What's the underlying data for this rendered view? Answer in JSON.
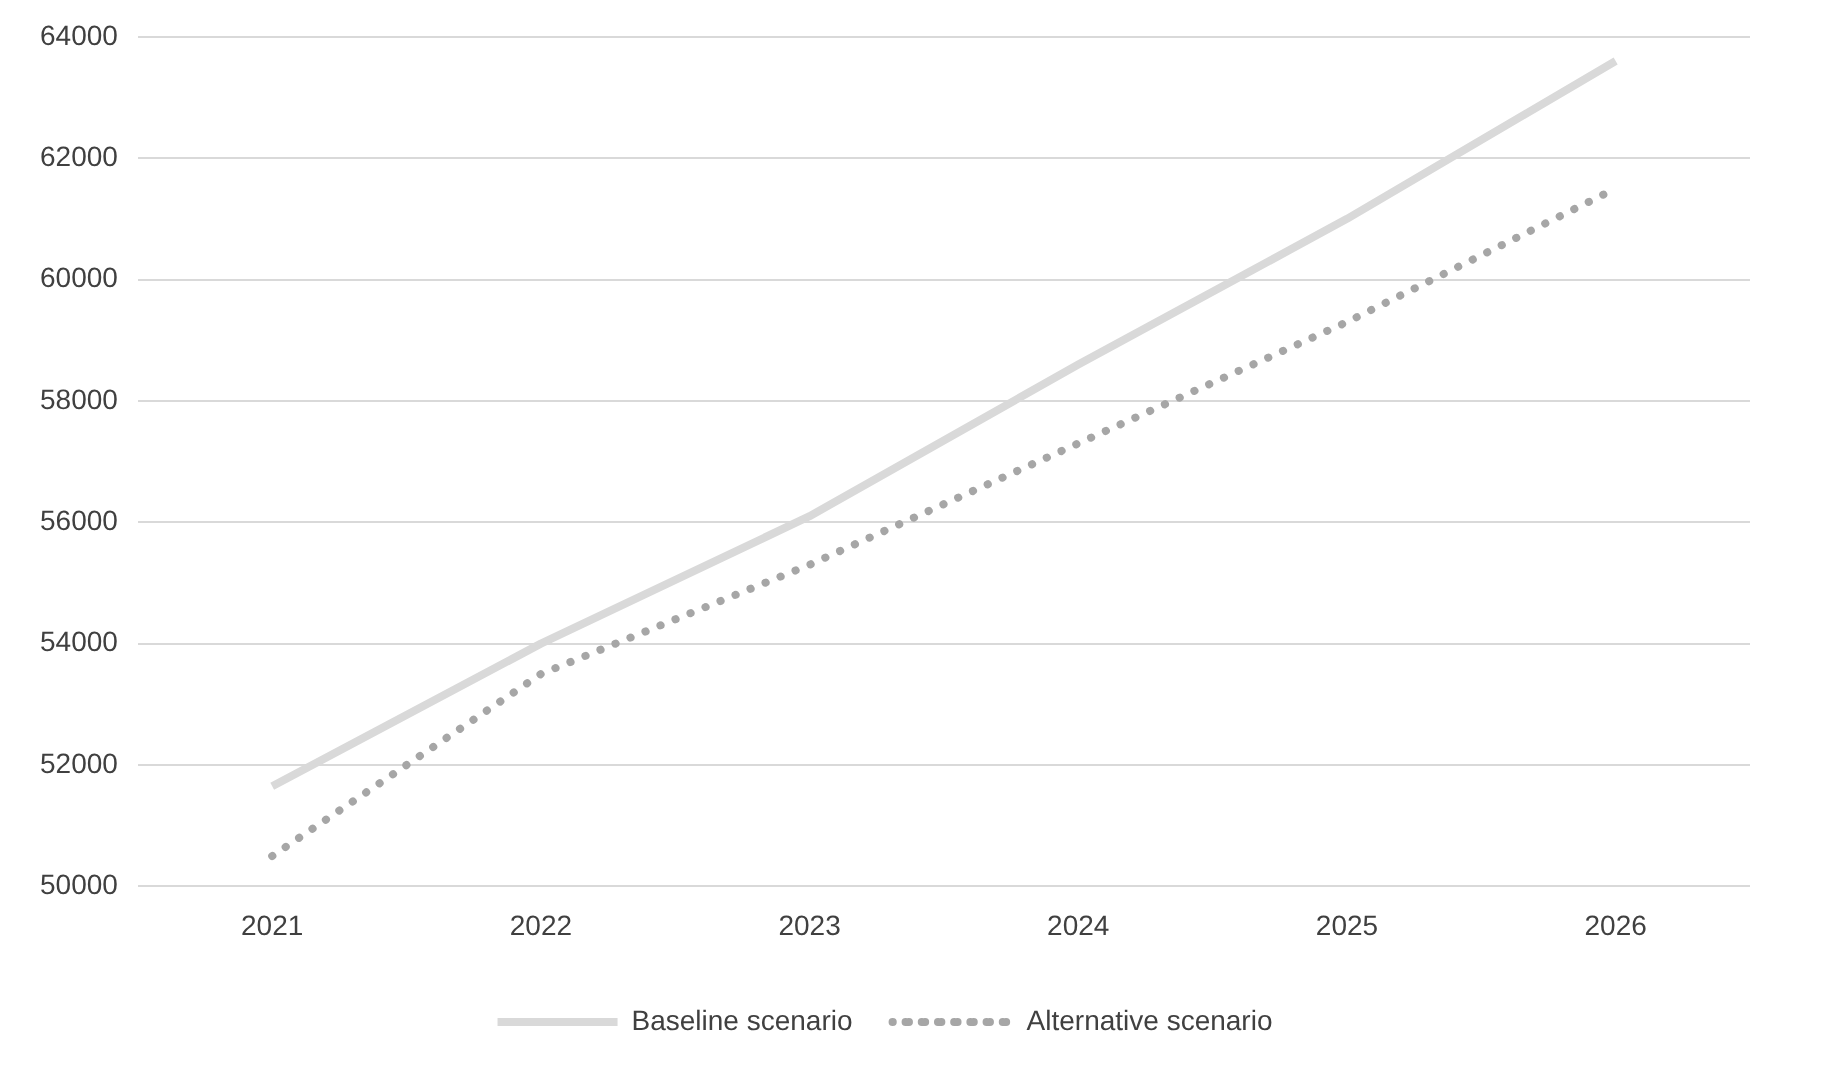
{
  "chart_data": {
    "type": "line",
    "categories": [
      "2021",
      "2022",
      "2023",
      "2024",
      "2025",
      "2026"
    ],
    "series": [
      {
        "name": "Baseline scenario",
        "color": "#d9d9d9",
        "line_style": "solid",
        "values": [
          51650,
          54000,
          56100,
          58600,
          61000,
          63600
        ]
      },
      {
        "name": "Alternative scenario",
        "color": "#a6a6a6",
        "line_style": "dotted",
        "values": [
          50500,
          53500,
          55300,
          57300,
          59300,
          61500
        ]
      }
    ],
    "ylim": [
      50000,
      64000
    ],
    "yticks": [
      50000,
      52000,
      54000,
      56000,
      58000,
      60000,
      62000,
      64000
    ],
    "grid": "y",
    "legend": "bottom",
    "marker": "none"
  }
}
